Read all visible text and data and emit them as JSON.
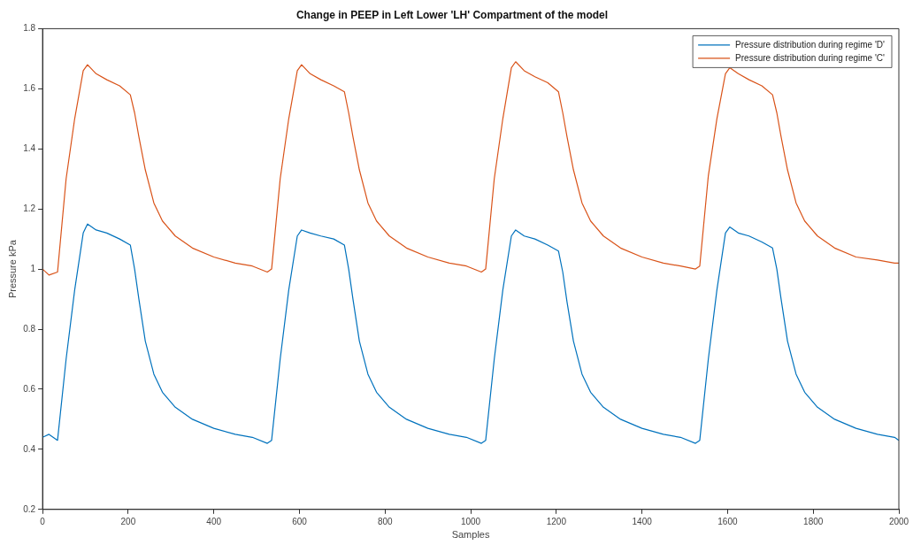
{
  "chart_data": {
    "type": "line",
    "title": "Change in PEEP in Left Lower 'LH' Compartment of the model",
    "xlabel": "Samples",
    "ylabel": "Pressure kPa",
    "x": [
      0,
      15,
      35,
      55,
      75,
      95,
      105,
      125,
      150,
      180,
      205,
      215,
      225,
      240,
      260,
      280,
      310,
      350,
      400,
      450,
      490,
      525,
      535,
      555,
      575,
      595,
      605,
      625,
      650,
      680,
      705,
      715,
      725,
      740,
      760,
      780,
      810,
      850,
      900,
      950,
      990,
      1025,
      1035,
      1055,
      1075,
      1095,
      1105,
      1125,
      1150,
      1180,
      1205,
      1215,
      1225,
      1240,
      1260,
      1280,
      1310,
      1350,
      1400,
      1450,
      1490,
      1525,
      1535,
      1555,
      1575,
      1595,
      1605,
      1625,
      1650,
      1680,
      1705,
      1715,
      1725,
      1740,
      1760,
      1780,
      1810,
      1850,
      1900,
      1950,
      1990,
      2000
    ],
    "series": [
      {
        "name": "Pressure distribution during regime 'D'",
        "color": "#0072bd",
        "values": [
          0.44,
          0.45,
          0.43,
          0.7,
          0.93,
          1.12,
          1.15,
          1.13,
          1.12,
          1.1,
          1.08,
          1.0,
          0.9,
          0.76,
          0.65,
          0.59,
          0.54,
          0.5,
          0.47,
          0.45,
          0.44,
          0.42,
          0.43,
          0.7,
          0.93,
          1.11,
          1.13,
          1.12,
          1.11,
          1.1,
          1.08,
          1.0,
          0.9,
          0.76,
          0.65,
          0.59,
          0.54,
          0.5,
          0.47,
          0.45,
          0.44,
          0.42,
          0.43,
          0.7,
          0.93,
          1.11,
          1.13,
          1.11,
          1.1,
          1.08,
          1.06,
          0.99,
          0.89,
          0.76,
          0.65,
          0.59,
          0.54,
          0.5,
          0.47,
          0.45,
          0.44,
          0.42,
          0.43,
          0.7,
          0.93,
          1.12,
          1.14,
          1.12,
          1.11,
          1.09,
          1.07,
          1.0,
          0.9,
          0.76,
          0.65,
          0.59,
          0.54,
          0.5,
          0.47,
          0.45,
          0.44,
          0.43
        ]
      },
      {
        "name": "Pressure distribution during regime 'C'",
        "color": "#d95319",
        "values": [
          1.0,
          0.98,
          0.99,
          1.3,
          1.5,
          1.66,
          1.68,
          1.65,
          1.63,
          1.61,
          1.58,
          1.52,
          1.44,
          1.33,
          1.22,
          1.16,
          1.11,
          1.07,
          1.04,
          1.02,
          1.01,
          0.99,
          1.0,
          1.3,
          1.5,
          1.66,
          1.68,
          1.65,
          1.63,
          1.61,
          1.59,
          1.52,
          1.44,
          1.33,
          1.22,
          1.16,
          1.11,
          1.07,
          1.04,
          1.02,
          1.01,
          0.99,
          1.0,
          1.3,
          1.5,
          1.67,
          1.69,
          1.66,
          1.64,
          1.62,
          1.59,
          1.52,
          1.44,
          1.33,
          1.22,
          1.16,
          1.11,
          1.07,
          1.04,
          1.02,
          1.01,
          1.0,
          1.01,
          1.31,
          1.5,
          1.65,
          1.67,
          1.65,
          1.63,
          1.61,
          1.58,
          1.52,
          1.44,
          1.33,
          1.22,
          1.16,
          1.11,
          1.07,
          1.04,
          1.03,
          1.02,
          1.02
        ]
      }
    ],
    "xlim": [
      0,
      2000
    ],
    "xticks": [
      0,
      200,
      400,
      600,
      800,
      1000,
      1200,
      1400,
      1600,
      1800,
      2000
    ],
    "ylim": [
      0.2,
      1.8
    ],
    "yticks": [
      0.2,
      0.4,
      0.6,
      0.8,
      1,
      1.2,
      1.4,
      1.6,
      1.8
    ],
    "legend": "top right",
    "marker": "none",
    "line_style": "solid"
  }
}
